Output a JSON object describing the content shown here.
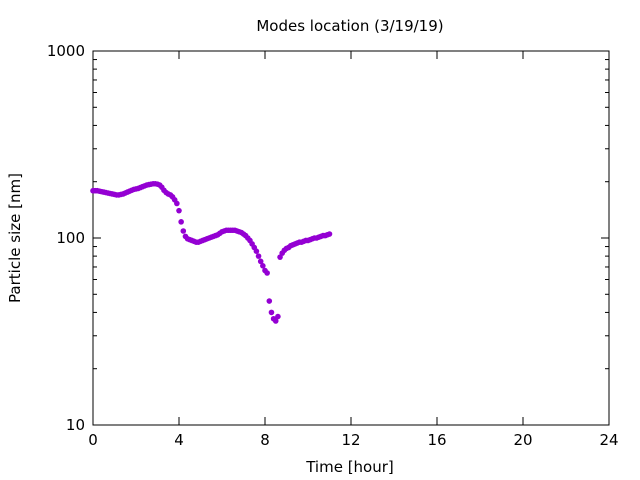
{
  "chart_data": {
    "type": "scatter",
    "title": "Modes location (3/19/19)",
    "xlabel": "Time [hour]",
    "ylabel": "Particle size [nm]",
    "xlim": [
      0,
      24
    ],
    "ylim": [
      10,
      1000
    ],
    "y_scale": "log",
    "grid": false,
    "legend": "none",
    "x_ticks": [
      0,
      4,
      8,
      12,
      16,
      20,
      24
    ],
    "x_tick_labels": [
      "0",
      "4",
      "8",
      "12",
      "16",
      "20",
      "24"
    ],
    "y_ticks": [
      10,
      100,
      1000
    ],
    "y_tick_labels": [
      "10",
      "100",
      "1000"
    ],
    "marker_color": "#9400d3",
    "series": [
      {
        "values": [
          [
            0.0,
            179
          ],
          [
            0.1,
            179
          ],
          [
            0.2,
            179
          ],
          [
            0.3,
            178
          ],
          [
            0.4,
            177
          ],
          [
            0.5,
            176
          ],
          [
            0.6,
            175
          ],
          [
            0.7,
            174
          ],
          [
            0.8,
            173
          ],
          [
            0.9,
            172
          ],
          [
            1.0,
            171
          ],
          [
            1.1,
            170
          ],
          [
            1.2,
            170
          ],
          [
            1.3,
            171
          ],
          [
            1.4,
            172
          ],
          [
            1.5,
            174
          ],
          [
            1.6,
            176
          ],
          [
            1.7,
            178
          ],
          [
            1.8,
            180
          ],
          [
            1.9,
            182
          ],
          [
            2.0,
            183
          ],
          [
            2.1,
            184
          ],
          [
            2.2,
            186
          ],
          [
            2.3,
            188
          ],
          [
            2.4,
            190
          ],
          [
            2.5,
            192
          ],
          [
            2.6,
            193
          ],
          [
            2.7,
            194
          ],
          [
            2.8,
            195
          ],
          [
            2.9,
            195
          ],
          [
            3.0,
            194
          ],
          [
            3.1,
            192
          ],
          [
            3.2,
            187
          ],
          [
            3.3,
            180
          ],
          [
            3.4,
            175
          ],
          [
            3.5,
            172
          ],
          [
            3.6,
            170
          ],
          [
            3.7,
            166
          ],
          [
            3.8,
            160
          ],
          [
            3.9,
            153
          ],
          [
            4.0,
            140
          ],
          [
            4.1,
            122
          ],
          [
            4.2,
            109
          ],
          [
            4.3,
            102
          ],
          [
            4.4,
            99
          ],
          [
            4.5,
            98
          ],
          [
            4.6,
            97
          ],
          [
            4.7,
            96
          ],
          [
            4.8,
            95
          ],
          [
            4.9,
            95
          ],
          [
            5.0,
            96
          ],
          [
            5.1,
            97
          ],
          [
            5.2,
            98
          ],
          [
            5.3,
            99
          ],
          [
            5.4,
            100
          ],
          [
            5.5,
            101
          ],
          [
            5.6,
            102
          ],
          [
            5.7,
            103
          ],
          [
            5.8,
            104
          ],
          [
            5.9,
            106
          ],
          [
            6.0,
            108
          ],
          [
            6.1,
            109
          ],
          [
            6.2,
            110
          ],
          [
            6.3,
            110
          ],
          [
            6.4,
            110
          ],
          [
            6.5,
            110
          ],
          [
            6.6,
            110
          ],
          [
            6.7,
            109
          ],
          [
            6.8,
            108
          ],
          [
            6.9,
            107
          ],
          [
            7.0,
            105
          ],
          [
            7.1,
            103
          ],
          [
            7.2,
            100
          ],
          [
            7.3,
            97
          ],
          [
            7.4,
            93
          ],
          [
            7.5,
            89
          ],
          [
            7.6,
            85
          ],
          [
            7.7,
            80
          ],
          [
            7.8,
            75
          ],
          [
            7.9,
            71
          ],
          [
            8.0,
            67
          ],
          [
            8.1,
            65
          ],
          [
            8.2,
            46
          ],
          [
            8.3,
            40
          ],
          [
            8.4,
            37
          ],
          [
            8.5,
            36
          ],
          [
            8.6,
            38
          ],
          [
            8.7,
            79
          ],
          [
            8.8,
            83
          ],
          [
            8.9,
            86
          ],
          [
            9.0,
            88
          ],
          [
            9.1,
            89
          ],
          [
            9.2,
            91
          ],
          [
            9.3,
            92
          ],
          [
            9.4,
            93
          ],
          [
            9.5,
            94
          ],
          [
            9.6,
            95
          ],
          [
            9.7,
            95
          ],
          [
            9.8,
            96
          ],
          [
            9.9,
            97
          ],
          [
            10.0,
            97
          ],
          [
            10.1,
            98
          ],
          [
            10.2,
            99
          ],
          [
            10.3,
            100
          ],
          [
            10.4,
            100
          ],
          [
            10.5,
            101
          ],
          [
            10.6,
            102
          ],
          [
            10.7,
            103
          ],
          [
            10.8,
            103
          ],
          [
            10.9,
            104
          ],
          [
            11.0,
            105
          ]
        ]
      }
    ]
  }
}
